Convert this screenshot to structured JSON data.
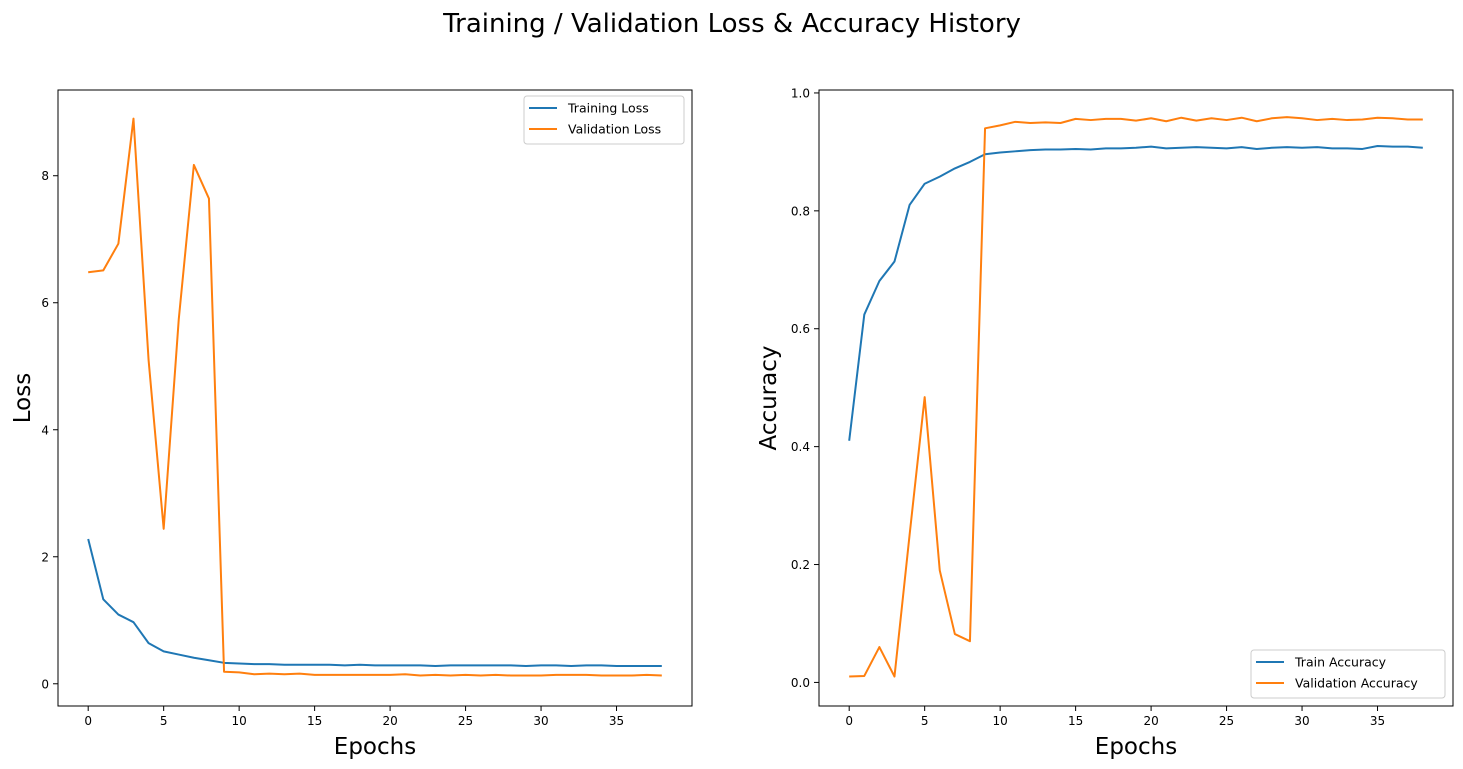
{
  "figure": {
    "suptitle": "Training / Validation Loss & Accuracy History"
  },
  "chart_data": [
    {
      "type": "line",
      "title": "",
      "xlabel": "Epochs",
      "ylabel": "Loss",
      "xlim": [
        -2,
        40
      ],
      "ylim": [
        -0.35,
        9.35
      ],
      "xticks": [
        0,
        5,
        10,
        15,
        20,
        25,
        30,
        35
      ],
      "xtick_labels": [
        "0",
        "5",
        "10",
        "15",
        "20",
        "25",
        "30",
        "35"
      ],
      "yticks": [
        0,
        2,
        4,
        6,
        8
      ],
      "ytick_labels": [
        "0",
        "2",
        "4",
        "6",
        "8"
      ],
      "grid": false,
      "legend_position": "upper-right",
      "x": [
        0,
        1,
        2,
        3,
        4,
        5,
        6,
        7,
        8,
        9,
        10,
        11,
        12,
        13,
        14,
        15,
        16,
        17,
        18,
        19,
        20,
        21,
        22,
        23,
        24,
        25,
        26,
        27,
        28,
        29,
        30,
        31,
        32,
        33,
        34,
        35,
        36,
        37,
        38
      ],
      "series": [
        {
          "name": "Training Loss",
          "color": "#1f77b4",
          "values": [
            2.28,
            1.33,
            1.09,
            0.97,
            0.64,
            0.51,
            0.46,
            0.41,
            0.37,
            0.33,
            0.32,
            0.31,
            0.31,
            0.3,
            0.3,
            0.3,
            0.3,
            0.29,
            0.3,
            0.29,
            0.29,
            0.29,
            0.29,
            0.28,
            0.29,
            0.29,
            0.29,
            0.29,
            0.29,
            0.28,
            0.29,
            0.29,
            0.28,
            0.29,
            0.29,
            0.28,
            0.28,
            0.28,
            0.28
          ]
        },
        {
          "name": "Validation Loss",
          "color": "#ff7f0e",
          "values": [
            6.48,
            6.51,
            6.93,
            8.9,
            5.1,
            2.44,
            5.74,
            8.17,
            7.64,
            0.19,
            0.18,
            0.15,
            0.16,
            0.15,
            0.16,
            0.14,
            0.14,
            0.14,
            0.14,
            0.14,
            0.14,
            0.15,
            0.13,
            0.14,
            0.13,
            0.14,
            0.13,
            0.14,
            0.13,
            0.13,
            0.13,
            0.14,
            0.14,
            0.14,
            0.13,
            0.13,
            0.13,
            0.14,
            0.13
          ]
        }
      ]
    },
    {
      "type": "line",
      "title": "",
      "xlabel": "Epochs",
      "ylabel": "Accuracy",
      "xlim": [
        -2,
        40
      ],
      "ylim": [
        -0.04,
        1.005
      ],
      "xticks": [
        0,
        5,
        10,
        15,
        20,
        25,
        30,
        35
      ],
      "xtick_labels": [
        "0",
        "5",
        "10",
        "15",
        "20",
        "25",
        "30",
        "35"
      ],
      "yticks": [
        0.0,
        0.2,
        0.4,
        0.6,
        0.8,
        1.0
      ],
      "ytick_labels": [
        "0.0",
        "0.2",
        "0.4",
        "0.6",
        "0.8",
        "1.0"
      ],
      "grid": false,
      "legend_position": "lower-right",
      "x": [
        0,
        1,
        2,
        3,
        4,
        5,
        6,
        7,
        8,
        9,
        10,
        11,
        12,
        13,
        14,
        15,
        16,
        17,
        18,
        19,
        20,
        21,
        22,
        23,
        24,
        25,
        26,
        27,
        28,
        29,
        30,
        31,
        32,
        33,
        34,
        35,
        36,
        37,
        38
      ],
      "series": [
        {
          "name": "Train Accuracy",
          "color": "#1f77b4",
          "values": [
            0.41,
            0.624,
            0.681,
            0.714,
            0.81,
            0.846,
            0.858,
            0.872,
            0.883,
            0.896,
            0.899,
            0.901,
            0.903,
            0.904,
            0.904,
            0.905,
            0.904,
            0.906,
            0.906,
            0.907,
            0.909,
            0.906,
            0.907,
            0.908,
            0.907,
            0.906,
            0.908,
            0.905,
            0.907,
            0.908,
            0.907,
            0.908,
            0.906,
            0.906,
            0.905,
            0.91,
            0.909,
            0.909,
            0.907
          ]
        },
        {
          "name": "Validation Accuracy",
          "color": "#ff7f0e",
          "values": [
            0.01,
            0.011,
            0.06,
            0.01,
            0.25,
            0.484,
            0.19,
            0.082,
            0.07,
            0.94,
            0.945,
            0.951,
            0.949,
            0.95,
            0.949,
            0.956,
            0.954,
            0.956,
            0.956,
            0.953,
            0.957,
            0.952,
            0.958,
            0.953,
            0.957,
            0.954,
            0.958,
            0.952,
            0.957,
            0.959,
            0.957,
            0.954,
            0.956,
            0.954,
            0.955,
            0.958,
            0.957,
            0.955,
            0.955
          ]
        }
      ]
    }
  ]
}
